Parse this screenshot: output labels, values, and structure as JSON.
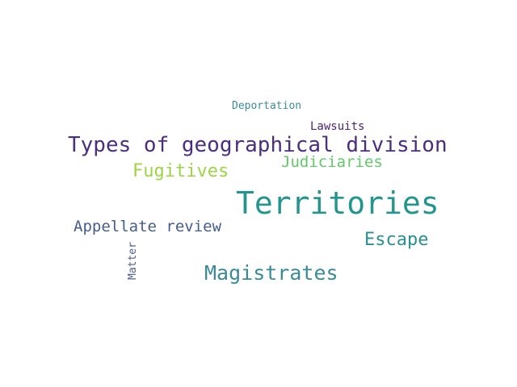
{
  "words": {
    "deportation": {
      "text": "Deportation",
      "color": "#3e8b9b"
    },
    "lawsuits": {
      "text": "Lawsuits",
      "color": "#4a2472"
    },
    "types": {
      "text": "Types of geographical division",
      "color": "#4b2e7e"
    },
    "judiciaries": {
      "text": "Judiciaries",
      "color": "#62c96a"
    },
    "fugitives": {
      "text": "Fugitives",
      "color": "#9cd446"
    },
    "territories": {
      "text": "Territories",
      "color": "#23958e"
    },
    "appellate": {
      "text": "Appellate review",
      "color": "#455c8e"
    },
    "escape": {
      "text": "Escape",
      "color": "#2a8f92"
    },
    "magistrates": {
      "text": "Magistrates",
      "color": "#3a8a98"
    },
    "matter": {
      "text": "Matter",
      "color": "#4f5f93"
    }
  }
}
